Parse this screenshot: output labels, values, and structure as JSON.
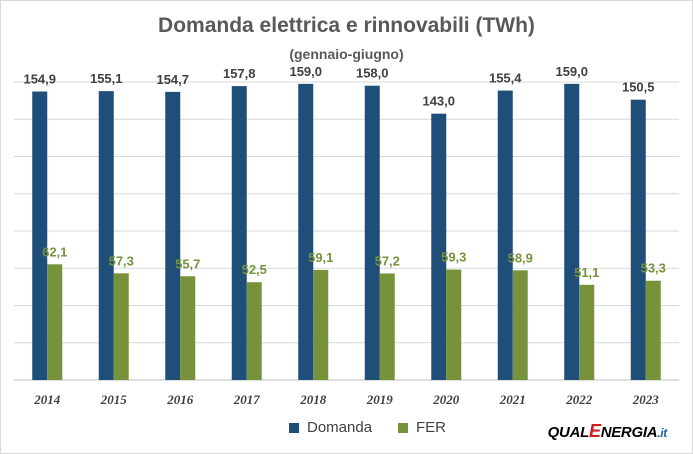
{
  "chart_data": {
    "type": "bar",
    "title": "Domanda elettrica e rinnovabili (TWh)",
    "subtitle": "(gennaio-giugno)",
    "categories": [
      "2014",
      "2015",
      "2016",
      "2017",
      "2018",
      "2019",
      "2020",
      "2021",
      "2022",
      "2023"
    ],
    "series": [
      {
        "name": "Domanda",
        "color": "#1f4e79",
        "label_color": "#404040",
        "values": [
          154.9,
          155.1,
          154.7,
          157.8,
          159.0,
          158.0,
          143.0,
          155.4,
          159.0,
          150.5
        ],
        "labels": [
          "154,9",
          "155,1",
          "154,7",
          "157,8",
          "159,0",
          "158,0",
          "143,0",
          "155,4",
          "159,0",
          "150,5"
        ]
      },
      {
        "name": "FER",
        "color": "#76933c",
        "label_color": "#76933c",
        "values": [
          62.1,
          57.3,
          55.7,
          52.5,
          59.1,
          57.2,
          59.3,
          58.9,
          51.1,
          53.3
        ],
        "labels": [
          "62,1",
          "57,3",
          "55,7",
          "52,5",
          "59,1",
          "57,2",
          "59,3",
          "58,9",
          "51,1",
          "53,3"
        ]
      }
    ],
    "ylim": [
      0,
      160
    ],
    "grid": true,
    "legend_position": "bottom"
  },
  "legend": {
    "domanda": "Domanda",
    "fer": "FER"
  },
  "logo": {
    "part1": "QUAL",
    "part2": "E",
    "part3": "NERGIA",
    "part4": ".it"
  }
}
